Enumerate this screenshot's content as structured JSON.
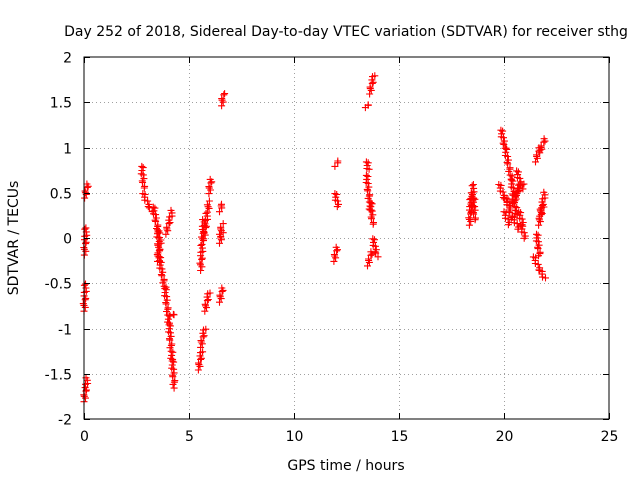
{
  "chart_data": {
    "type": "scatter",
    "title": "Day 252 of 2018, Sidereal Day-to-day VTEC variation (SDTVAR) for receiver sthg",
    "xlabel": "GPS time / hours",
    "ylabel": "SDTVAR / TECUs",
    "xlim": [
      0,
      25
    ],
    "ylim": [
      -2,
      2
    ],
    "xticks": [
      0,
      5,
      10,
      15,
      20,
      25
    ],
    "yticks": [
      -2,
      -1.5,
      -1,
      -0.5,
      0,
      0.5,
      1,
      1.5,
      2
    ],
    "xtick_labels": [
      "0",
      "5",
      "10",
      "15",
      "20",
      "25"
    ],
    "ytick_labels": [
      "-2",
      "-1.5",
      "-1",
      "-0.5",
      "0",
      "0.5",
      "1",
      "1.5",
      "2"
    ],
    "grid": true,
    "marker": "+",
    "color": "#ff0000",
    "series": [
      {
        "name": "sthg",
        "segments": [
          [
            [
              0.03,
              0.45
            ],
            [
              0.18,
              0.6
            ]
          ],
          [
            [
              0.02,
              -0.18
            ],
            [
              0.1,
              0.12
            ]
          ],
          [
            [
              0.0,
              -0.8
            ],
            [
              0.08,
              -0.5
            ]
          ],
          [
            [
              0.0,
              -1.8
            ],
            [
              0.15,
              -1.55
            ]
          ],
          [
            [
              2.75,
              0.8
            ],
            [
              2.85,
              0.55
            ]
          ],
          [
            [
              2.8,
              0.5
            ],
            [
              3.2,
              0.3
            ]
          ],
          [
            [
              3.3,
              0.35
            ],
            [
              3.55,
              0.05
            ]
          ],
          [
            [
              3.5,
              0.1
            ],
            [
              3.6,
              -0.25
            ]
          ],
          [
            [
              3.6,
              -0.25
            ],
            [
              3.85,
              -0.55
            ]
          ],
          [
            [
              3.85,
              -0.55
            ],
            [
              4.05,
              -0.95
            ]
          ],
          [
            [
              4.05,
              -0.95
            ],
            [
              4.2,
              -1.35
            ]
          ],
          [
            [
              4.2,
              -1.35
            ],
            [
              4.3,
              -1.65
            ]
          ],
          [
            [
              4.1,
              -0.85
            ],
            [
              4.3,
              -0.85
            ]
          ],
          [
            [
              3.5,
              -0.25
            ],
            [
              3.65,
              0.0
            ]
          ],
          [
            [
              3.9,
              0.05
            ],
            [
              4.2,
              0.3
            ]
          ],
          [
            [
              5.45,
              -1.45
            ],
            [
              5.6,
              -1.25
            ]
          ],
          [
            [
              5.55,
              -1.2
            ],
            [
              5.75,
              -1.0
            ]
          ],
          [
            [
              5.75,
              -0.8
            ],
            [
              5.95,
              -0.6
            ]
          ],
          [
            [
              5.55,
              -0.35
            ],
            [
              5.7,
              0.2
            ]
          ],
          [
            [
              5.7,
              0.0
            ],
            [
              5.95,
              0.4
            ]
          ],
          [
            [
              5.95,
              0.5
            ],
            [
              6.05,
              0.65
            ]
          ],
          [
            [
              6.55,
              1.47
            ],
            [
              6.65,
              1.6
            ]
          ],
          [
            [
              6.45,
              0.3
            ],
            [
              6.6,
              0.38
            ]
          ],
          [
            [
              6.45,
              0.05
            ],
            [
              6.6,
              0.15
            ]
          ],
          [
            [
              6.45,
              -0.05
            ],
            [
              6.6,
              0.05
            ]
          ],
          [
            [
              6.45,
              -0.7
            ],
            [
              6.6,
              -0.55
            ]
          ],
          [
            [
              11.95,
              0.8
            ],
            [
              12.1,
              0.85
            ]
          ],
          [
            [
              11.95,
              0.5
            ],
            [
              12.1,
              0.35
            ]
          ],
          [
            [
              11.9,
              -0.25
            ],
            [
              12.05,
              -0.1
            ]
          ],
          [
            [
              13.4,
              1.45
            ],
            [
              13.55,
              1.47
            ]
          ],
          [
            [
              13.6,
              1.6
            ],
            [
              13.8,
              1.8
            ]
          ],
          [
            [
              13.45,
              0.7
            ],
            [
              13.65,
              0.3
            ]
          ],
          [
            [
              13.65,
              0.4
            ],
            [
              13.75,
              0.15
            ]
          ],
          [
            [
              13.75,
              0.0
            ],
            [
              13.95,
              -0.2
            ]
          ],
          [
            [
              13.5,
              -0.3
            ],
            [
              13.7,
              -0.15
            ]
          ],
          [
            [
              13.45,
              0.85
            ],
            [
              13.55,
              0.75
            ]
          ],
          [
            [
              18.35,
              0.15
            ],
            [
              18.45,
              0.5
            ]
          ],
          [
            [
              18.45,
              0.3
            ],
            [
              18.55,
              0.6
            ]
          ],
          [
            [
              18.55,
              0.45
            ],
            [
              18.6,
              0.2
            ]
          ],
          [
            [
              19.85,
              1.2
            ],
            [
              20.05,
              1.0
            ]
          ],
          [
            [
              20.05,
              1.0
            ],
            [
              20.35,
              0.65
            ]
          ],
          [
            [
              20.35,
              0.65
            ],
            [
              20.6,
              0.25
            ]
          ],
          [
            [
              19.75,
              0.6
            ],
            [
              20.1,
              0.4
            ]
          ],
          [
            [
              20.1,
              0.45
            ],
            [
              20.4,
              0.2
            ]
          ],
          [
            [
              20.4,
              0.25
            ],
            [
              20.7,
              0.1
            ]
          ],
          [
            [
              20.0,
              0.3
            ],
            [
              20.25,
              0.15
            ]
          ],
          [
            [
              20.3,
              0.35
            ],
            [
              20.6,
              0.5
            ]
          ],
          [
            [
              20.6,
              0.5
            ],
            [
              20.9,
              0.6
            ]
          ],
          [
            [
              20.6,
              0.75
            ],
            [
              20.85,
              0.55
            ]
          ],
          [
            [
              20.5,
              0.4
            ],
            [
              20.75,
              0.6
            ]
          ],
          [
            [
              20.7,
              0.3
            ],
            [
              20.9,
              0.15
            ]
          ],
          [
            [
              20.8,
              0.15
            ],
            [
              21.0,
              0.0
            ]
          ],
          [
            [
              21.5,
              0.85
            ],
            [
              21.7,
              1.0
            ]
          ],
          [
            [
              21.7,
              0.95
            ],
            [
              21.95,
              1.1
            ]
          ],
          [
            [
              21.55,
              0.05
            ],
            [
              21.7,
              -0.2
            ]
          ],
          [
            [
              21.4,
              -0.2
            ],
            [
              21.7,
              -0.35
            ]
          ],
          [
            [
              21.7,
              -0.35
            ],
            [
              21.95,
              -0.45
            ]
          ],
          [
            [
              21.7,
              0.25
            ],
            [
              21.95,
              0.5
            ]
          ],
          [
            [
              21.65,
              0.15
            ],
            [
              21.85,
              0.35
            ]
          ]
        ]
      }
    ]
  }
}
